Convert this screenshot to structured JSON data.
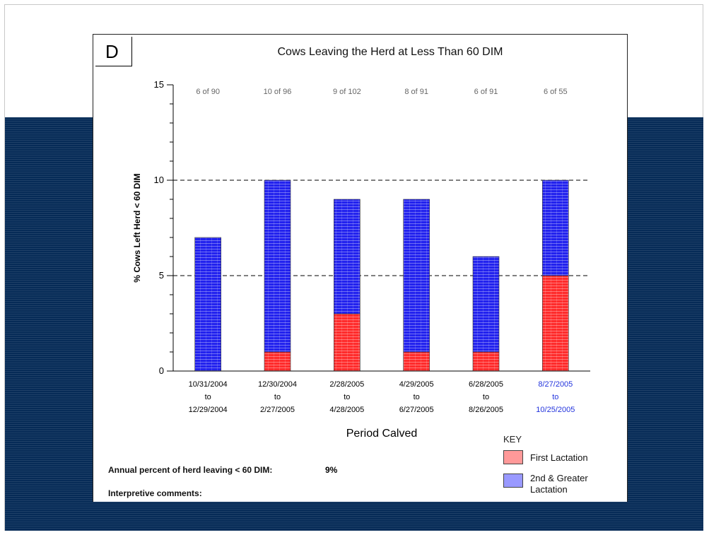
{
  "panel": {
    "letter": "D"
  },
  "chart_data": {
    "type": "bar",
    "stacked": true,
    "title": "Cows Leaving the Herd at Less Than 60 DIM",
    "xlabel": "Period Calved",
    "ylabel": "% Cows Left Herd < 60 DIM",
    "ylim": [
      0,
      15
    ],
    "yticks": [
      0,
      5,
      10,
      15
    ],
    "reference_lines": [
      5,
      10
    ],
    "categories": [
      [
        "10/31/2004",
        "to",
        "12/29/2004"
      ],
      [
        "12/30/2004",
        "to",
        "2/27/2005"
      ],
      [
        "2/28/2005",
        "to",
        "4/28/2005"
      ],
      [
        "4/29/2005",
        "to",
        "6/27/2005"
      ],
      [
        "6/28/2005",
        "to",
        "8/26/2005"
      ],
      [
        "8/27/2005",
        "to",
        "10/25/2005"
      ]
    ],
    "highlight_category_index": 5,
    "highlight_color": "#2233dd",
    "counts": [
      "6 of 90",
      "10 of 96",
      "9 of 102",
      "8 of 91",
      "6 of 91",
      "6 of 55"
    ],
    "series": [
      {
        "name": "First Lactation",
        "color": "#ff2b2b",
        "values": [
          0,
          1,
          3,
          1,
          1,
          5
        ]
      },
      {
        "name": "2nd & Greater Lactation",
        "color": "#2222ee",
        "values": [
          7,
          9,
          6,
          8,
          5,
          5
        ]
      }
    ]
  },
  "key": {
    "title": "KEY",
    "items": [
      {
        "label": "First Lactation",
        "color": "#ff9999"
      },
      {
        "label": "2nd & Greater Lactation",
        "color": "#9999ff"
      }
    ]
  },
  "annotations": {
    "annual_label": "Annual percent of herd leaving < 60 DIM:",
    "annual_value": "9%",
    "comments_label": "Interpretive comments:"
  }
}
